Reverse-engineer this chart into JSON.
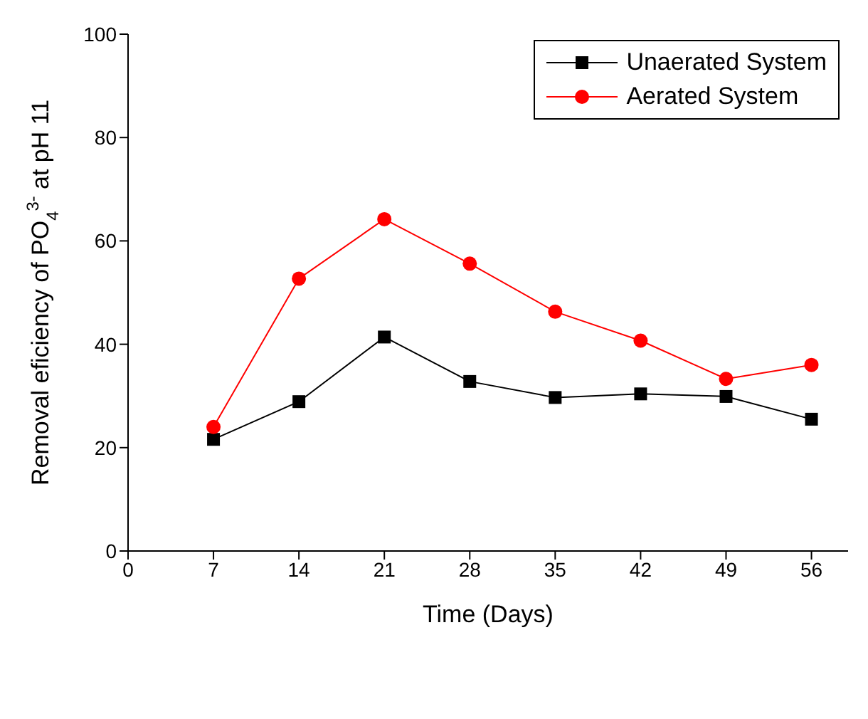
{
  "chart_data": {
    "type": "line",
    "xlabel": "Time (Days)",
    "ylabel": "Removal eficiency of PO$_{4}$$^{3-}$ at pH 11",
    "x": [
      7,
      14,
      21,
      28,
      35,
      42,
      49,
      56
    ],
    "series": [
      {
        "name": "Unaerated System",
        "color": "#000000",
        "marker": "square",
        "values": [
          21.6,
          28.9,
          41.4,
          32.8,
          29.7,
          30.4,
          29.9,
          25.5
        ]
      },
      {
        "name": "Aerated System",
        "color": "#ff0000",
        "marker": "circle",
        "values": [
          24.0,
          52.7,
          64.2,
          55.6,
          46.3,
          40.7,
          33.3,
          36.0
        ]
      }
    ],
    "xlim": [
      0,
      59
    ],
    "xticks": [
      0,
      7,
      14,
      21,
      28,
      35,
      42,
      49,
      56
    ],
    "ylim": [
      0,
      100
    ],
    "yticks": [
      0,
      20,
      40,
      60,
      80,
      100
    ],
    "grid": false,
    "legend": "top right"
  }
}
